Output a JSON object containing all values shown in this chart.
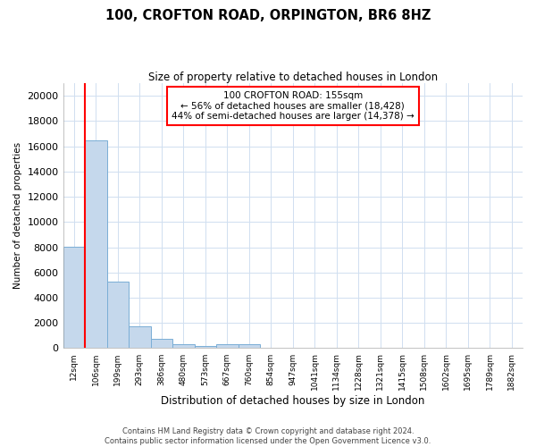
{
  "title_line1": "100, CROFTON ROAD, ORPINGTON, BR6 8HZ",
  "title_line2": "Size of property relative to detached houses in London",
  "xlabel": "Distribution of detached houses by size in London",
  "ylabel": "Number of detached properties",
  "categories": [
    "12sqm",
    "106sqm",
    "199sqm",
    "293sqm",
    "386sqm",
    "480sqm",
    "573sqm",
    "667sqm",
    "760sqm",
    "854sqm",
    "947sqm",
    "1041sqm",
    "1134sqm",
    "1228sqm",
    "1321sqm",
    "1415sqm",
    "1508sqm",
    "1602sqm",
    "1695sqm",
    "1789sqm",
    "1882sqm"
  ],
  "bar_values": [
    8050,
    16500,
    5300,
    1750,
    750,
    300,
    150,
    300,
    300,
    50,
    0,
    0,
    0,
    0,
    0,
    0,
    0,
    0,
    0,
    0,
    0
  ],
  "bar_color": "#c5d8ec",
  "bar_edgecolor": "#7aaed6",
  "grid_color": "#d0dff0",
  "background_color": "#ffffff",
  "annotation_line1": "100 CROFTON ROAD: 155sqm",
  "annotation_line2": "← 56% of detached houses are smaller (18,428)",
  "annotation_line3": "44% of semi-detached houses are larger (14,378) →",
  "redline_bar_index": 1,
  "ylim": [
    0,
    21000
  ],
  "yticks": [
    0,
    2000,
    4000,
    6000,
    8000,
    10000,
    12000,
    14000,
    16000,
    18000,
    20000
  ],
  "footer_line1": "Contains HM Land Registry data © Crown copyright and database right 2024.",
  "footer_line2": "Contains public sector information licensed under the Open Government Licence v3.0."
}
